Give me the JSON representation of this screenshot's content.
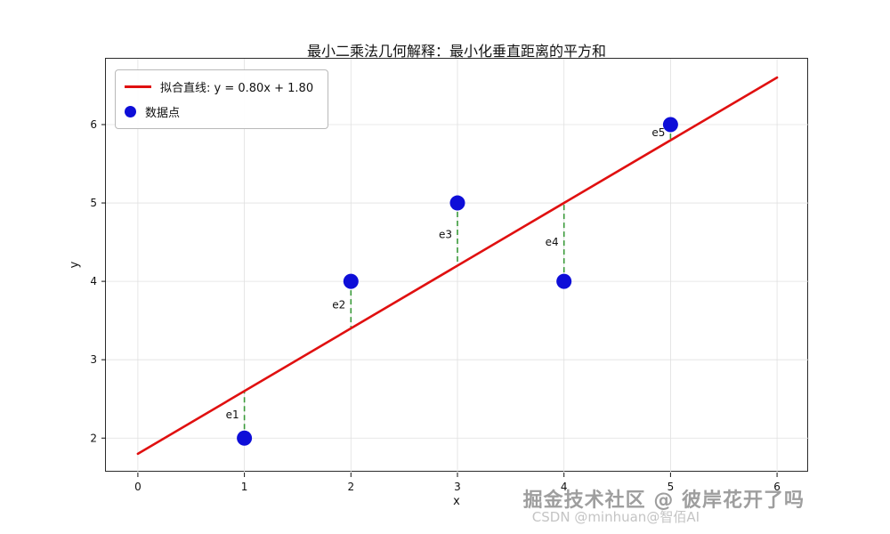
{
  "title": "最小二乘法几何解释：最小化垂直距离的平方和",
  "watermark": {
    "primary": "掘金技术社区 @ 彼岸花开了吗",
    "secondary": "CSDN @minhuan@智佰AI"
  },
  "chart_data": {
    "type": "scatter",
    "title": "最小二乘法几何解释：最小化垂直距离的平方和",
    "xlabel": "x",
    "ylabel": "y",
    "xlim": [
      -0.3,
      6.3
    ],
    "ylim": [
      1.56,
      6.84
    ],
    "x_ticks": [
      0,
      1,
      2,
      3,
      4,
      5,
      6
    ],
    "y_ticks": [
      2,
      3,
      4,
      5,
      6
    ],
    "grid": true,
    "grid_color": "#e0e0e0",
    "legend": {
      "position": "upper left",
      "entries": [
        {
          "label": "拟合直线: y = 0.80x + 1.80",
          "type": "line",
          "color": "#e01010"
        },
        {
          "label": "数据点",
          "type": "point",
          "color": "#0e0ed8"
        }
      ]
    },
    "fit_line": {
      "slope": 0.8,
      "intercept": 1.8,
      "x_start": 0,
      "x_end": 6,
      "color": "#e01010"
    },
    "points": {
      "x": [
        1,
        2,
        3,
        4,
        5
      ],
      "y": [
        2,
        4,
        5,
        4,
        6
      ],
      "color": "#0e0ed8"
    },
    "residuals": [
      {
        "label": "e1",
        "x": 1,
        "y_point": 2,
        "y_line": 2.6
      },
      {
        "label": "e2",
        "x": 2,
        "y_point": 4,
        "y_line": 3.4
      },
      {
        "label": "e3",
        "x": 3,
        "y_point": 5,
        "y_line": 4.2
      },
      {
        "label": "e4",
        "x": 4,
        "y_point": 4,
        "y_line": 5.0
      },
      {
        "label": "e5",
        "x": 5,
        "y_point": 6,
        "y_line": 5.8
      }
    ],
    "residual_color": "#3a9a3a"
  }
}
